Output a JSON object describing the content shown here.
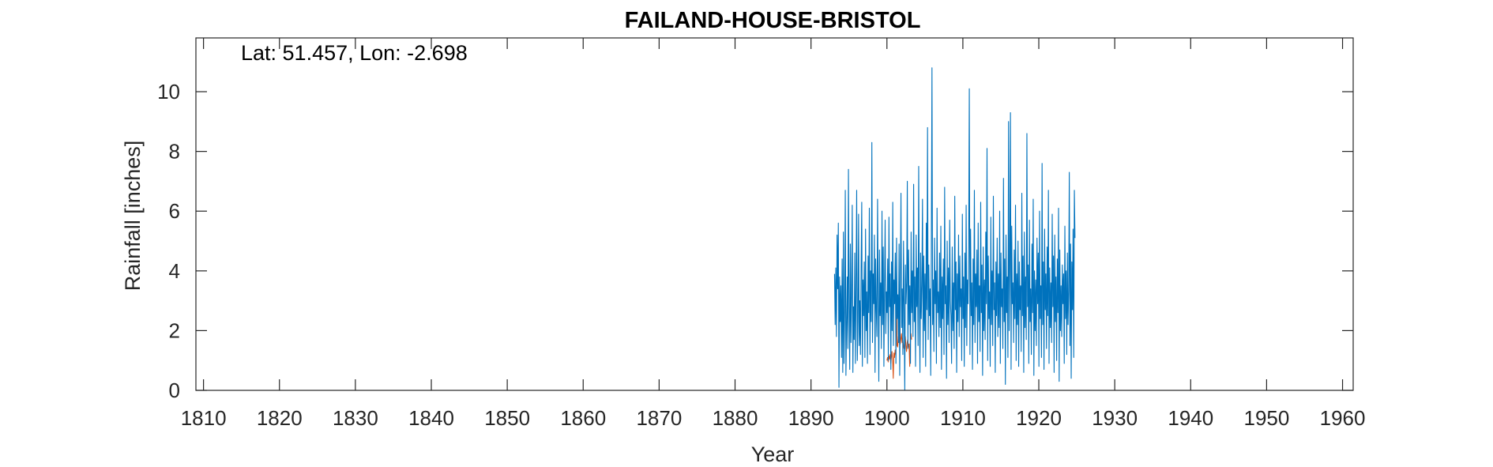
{
  "chart_data": {
    "type": "line",
    "title": "FAILAND-HOUSE-BRISTOL",
    "annotation": "Lat: 51.457, Lon: -2.698",
    "xlabel": "Year",
    "ylabel": "Rainfall [inches]",
    "xlim": [
      1809.0,
      1961.4
    ],
    "ylim": [
      0,
      11.8
    ],
    "xticks": [
      1810,
      1820,
      1830,
      1840,
      1850,
      1860,
      1870,
      1880,
      1890,
      1900,
      1910,
      1920,
      1930,
      1940,
      1950,
      1960
    ],
    "yticks": [
      0,
      2,
      4,
      6,
      8,
      10
    ],
    "grid": false,
    "legend": "none",
    "series": [
      {
        "color": "#0072BD",
        "x_start": 1893.1,
        "x_step": 0.08333,
        "values": [
          3.9,
          2.2,
          4.1,
          1.8,
          5.2,
          3.4,
          5.6,
          0.1,
          3.8,
          2.3,
          3.5,
          1.1,
          4.4,
          0.6,
          5.3,
          0.9,
          2.6,
          6.7,
          0.5,
          2.1,
          3.8,
          1.4,
          7.4,
          2.8,
          0.7,
          4.9,
          1.6,
          3.2,
          6.2,
          0.6,
          2.8,
          1.7,
          4.6,
          0.9,
          3.5,
          6.7,
          1.0,
          2.3,
          5.9,
          1.5,
          3.0,
          1.2,
          4.1,
          6.3,
          0.8,
          3.7,
          2.5,
          4.3,
          1.1,
          5.4,
          2.0,
          3.3,
          0.9,
          4.5,
          2.6,
          6.1,
          1.2,
          4.0,
          2.3,
          8.3,
          1.6,
          3.9,
          2.9,
          5.2,
          0.6,
          4.4,
          2.7,
          1.8,
          6.4,
          3.1,
          0.3,
          4.7,
          2.5,
          3.6,
          1.4,
          6.0,
          2.2,
          4.8,
          0.8,
          3.5,
          5.7,
          1.9,
          3.3,
          2.6,
          4.4,
          1.0,
          5.8,
          2.8,
          3.9,
          0.7,
          4.3,
          2.0,
          6.3,
          1.5,
          3.7,
          2.9,
          4.6,
          0.9,
          5.1,
          2.4,
          3.2,
          1.6,
          4.9,
          0.5,
          3.6,
          6.6,
          2.1,
          3.4,
          1.2,
          5.0,
          2.7,
          0.0,
          4.2,
          2.9,
          3.6,
          7.0,
          1.4,
          4.7,
          2.2,
          3.5,
          0.9,
          5.3,
          2.6,
          4.0,
          1.8,
          6.9,
          2.3,
          3.8,
          0.8,
          5.2,
          2.8,
          4.1,
          1.5,
          7.5,
          3.0,
          0.6,
          4.6,
          2.4,
          3.5,
          6.4,
          1.1,
          4.5,
          2.0,
          3.9,
          0.8,
          5.6,
          2.7,
          8.8,
          1.7,
          4.2,
          2.5,
          3.4,
          0.5,
          4.9,
          10.8,
          2.2,
          3.7,
          1.3,
          5.1,
          2.9,
          4.0,
          0.9,
          6.1,
          2.6,
          3.3,
          1.8,
          4.6,
          2.1,
          5.5,
          0.7,
          3.8,
          2.4,
          4.4,
          1.2,
          6.8,
          2.9,
          3.5,
          0.4,
          5.0,
          2.2,
          4.1,
          1.6,
          5.7,
          3.0,
          2.5,
          0.9,
          4.8,
          2.0,
          3.6,
          1.4,
          6.5,
          2.7,
          4.3,
          0.6,
          3.9,
          2.3,
          5.2,
          1.8,
          4.5,
          2.8,
          3.4,
          1.0,
          5.9,
          2.4,
          3.8,
          0.8,
          4.6,
          2.1,
          6.2,
          1.5,
          3.7,
          2.9,
          4.9,
          10.1,
          1.2,
          5.4,
          2.5,
          3.6,
          0.7,
          4.4,
          2.2,
          6.7,
          1.6,
          3.9,
          2.8,
          4.7,
          0.9,
          5.6,
          2.3,
          3.5,
          1.3,
          6.3,
          2.6,
          4.2,
          0.5,
          4.8,
          2.0,
          3.7,
          1.7,
          5.3,
          2.9,
          8.1,
          1.0,
          4.5,
          2.4,
          3.3,
          0.8,
          5.8,
          2.2,
          4.0,
          1.5,
          6.5,
          2.7,
          3.6,
          0.6,
          4.3,
          2.5,
          5.1,
          1.8,
          3.9,
          2.1,
          6.0,
          0.9,
          4.6,
          2.8,
          3.4,
          1.4,
          7.1,
          2.3,
          4.4,
          0.2,
          5.2,
          2.6,
          3.8,
          1.1,
          9.0,
          2.0,
          4.1,
          9.3,
          0.7,
          5.5,
          2.9,
          3.6,
          1.6,
          4.7,
          2.4,
          6.2,
          1.0,
          3.9,
          2.2,
          5.0,
          0.8,
          4.3,
          2.7,
          3.5,
          1.3,
          6.6,
          2.5,
          4.5,
          0.6,
          5.3,
          2.1,
          3.8,
          1.7,
          8.6,
          2.8,
          4.2,
          0.9,
          5.7,
          2.3,
          3.4,
          1.2,
          4.9,
          2.6,
          6.4,
          0.5,
          4.0,
          2.0,
          3.7,
          1.5,
          5.1,
          2.9,
          4.6,
          0.8,
          6.0,
          2.4,
          3.5,
          1.1,
          7.6,
          2.2,
          4.3,
          0.7,
          5.4,
          2.7,
          3.9,
          1.4,
          4.8,
          2.5,
          6.7,
          0.9,
          4.1,
          2.1,
          3.6,
          1.6,
          5.9,
          2.8,
          4.5,
          0.6,
          5.2,
          2.3,
          3.8,
          1.0,
          4.4,
          2.6,
          6.1,
          0.3,
          4.7,
          2.0,
          3.5,
          1.8,
          4.2,
          2.9,
          3.9,
          0.9,
          5.5,
          2.4,
          4.0,
          1.2,
          4.6,
          2.2,
          3.3,
          7.3,
          1.5,
          4.9,
          0.4,
          4.3,
          2.7,
          5.4,
          1.1,
          6.7,
          5.1
        ]
      },
      {
        "color": "#D95319",
        "x_start": 1900.0,
        "x_step": 0.08333,
        "values": [
          1.0,
          1.1,
          0.95,
          1.15,
          1.05,
          1.2,
          0.9,
          1.1,
          1.3,
          1.05,
          0.4,
          1.25,
          1.1,
          1.35,
          1.2,
          3.6,
          1.5,
          1.45,
          1.8,
          1.6,
          3.1,
          1.55,
          1.7,
          1.9,
          1.6,
          1.75,
          1.5,
          1.4,
          1.65,
          1.8,
          1.5,
          1.3,
          1.6,
          1.7,
          1.45,
          1.55,
          0.8,
          1.6,
          1.9,
          1.7
        ]
      }
    ]
  }
}
